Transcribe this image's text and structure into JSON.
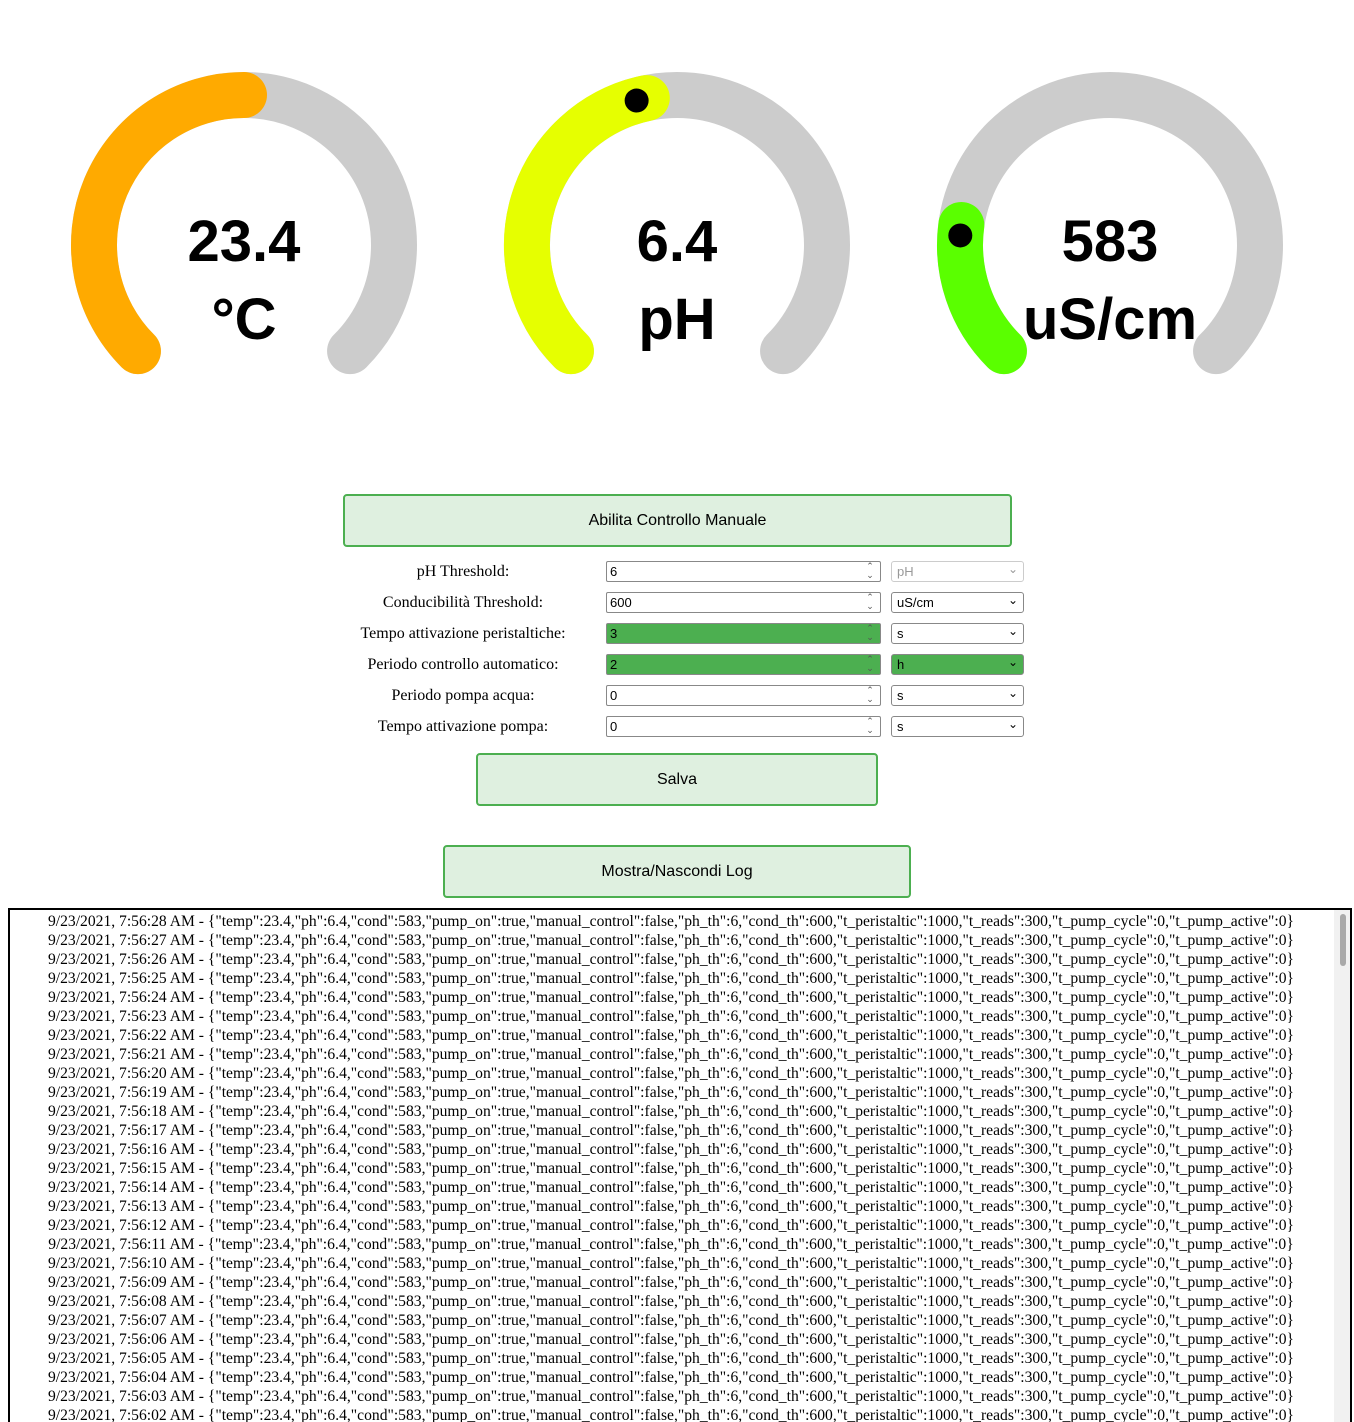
{
  "gauges": [
    {
      "name": "temperature",
      "value": "23.4",
      "unit": "°C",
      "color": "#ffaa00",
      "fraction": 0.5
    },
    {
      "name": "ph",
      "value": "6.4",
      "unit": "pH",
      "color": "#e6ff00",
      "fraction": 0.457
    },
    {
      "name": "conductivity",
      "value": "583",
      "unit": "uS/cm",
      "color": "#5aff00",
      "fraction": 0.195
    }
  ],
  "manual_button": "Abilita Controllo Manuale",
  "form": [
    {
      "label": "pH Threshold:",
      "value": "6",
      "unit": "pH",
      "unit_disabled": true,
      "value_highlight": false,
      "unit_highlight": false
    },
    {
      "label": "Conducibilità Threshold:",
      "value": "600",
      "unit": "uS/cm",
      "unit_disabled": false,
      "value_highlight": false,
      "unit_highlight": false
    },
    {
      "label": "Tempo attivazione peristaltiche:",
      "value": "3",
      "unit": "s",
      "unit_disabled": false,
      "value_highlight": true,
      "unit_highlight": false
    },
    {
      "label": "Periodo controllo automatico:",
      "value": "2",
      "unit": "h",
      "unit_disabled": false,
      "value_highlight": true,
      "unit_highlight": true
    },
    {
      "label": "Periodo pompa acqua:",
      "value": "0",
      "unit": "s",
      "unit_disabled": false,
      "value_highlight": false,
      "unit_highlight": false
    },
    {
      "label": "Tempo attivazione pompa:",
      "value": "0",
      "unit": "s",
      "unit_disabled": false,
      "value_highlight": false,
      "unit_highlight": false
    }
  ],
  "save_button": "Salva",
  "log_button": "Mostra/Nascondi Log",
  "log": {
    "payload": " - {\"temp\":23.4,\"ph\":6.4,\"cond\":583,\"pump_on\":true,\"manual_control\":false,\"ph_th\":6,\"cond_th\":600,\"t_peristaltic\":1000,\"t_reads\":300,\"t_pump_cycle\":0,\"t_pump_active\":0}",
    "timestamps": [
      "9/23/2021, 7:56:28 AM",
      "9/23/2021, 7:56:27 AM",
      "9/23/2021, 7:56:26 AM",
      "9/23/2021, 7:56:25 AM",
      "9/23/2021, 7:56:24 AM",
      "9/23/2021, 7:56:23 AM",
      "9/23/2021, 7:56:22 AM",
      "9/23/2021, 7:56:21 AM",
      "9/23/2021, 7:56:20 AM",
      "9/23/2021, 7:56:19 AM",
      "9/23/2021, 7:56:18 AM",
      "9/23/2021, 7:56:17 AM",
      "9/23/2021, 7:56:16 AM",
      "9/23/2021, 7:56:15 AM",
      "9/23/2021, 7:56:14 AM",
      "9/23/2021, 7:56:13 AM",
      "9/23/2021, 7:56:12 AM",
      "9/23/2021, 7:56:11 AM",
      "9/23/2021, 7:56:10 AM",
      "9/23/2021, 7:56:09 AM",
      "9/23/2021, 7:56:08 AM",
      "9/23/2021, 7:56:07 AM",
      "9/23/2021, 7:56:06 AM",
      "9/23/2021, 7:56:05 AM",
      "9/23/2021, 7:56:04 AM",
      "9/23/2021, 7:56:03 AM",
      "9/23/2021, 7:56:02 AM"
    ]
  }
}
